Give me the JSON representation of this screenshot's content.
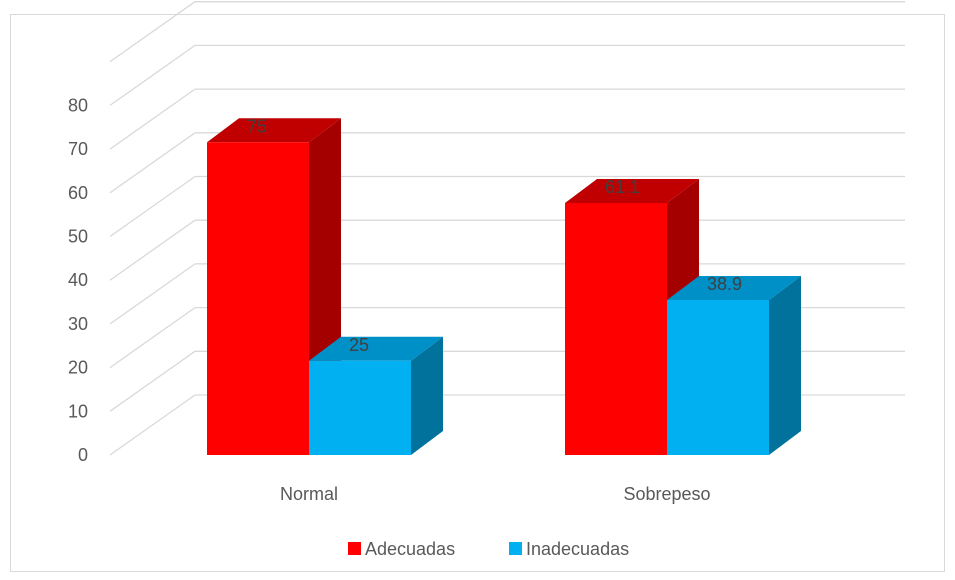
{
  "chart_data": {
    "type": "bar",
    "categories": [
      "Normal",
      "Sobrepeso"
    ],
    "series": [
      {
        "name": "Adecuadas",
        "values": [
          75,
          61.1
        ],
        "color": "#ff0000",
        "side_color": "#a50000",
        "top_color": "#c00000"
      },
      {
        "name": "Inadecuadas",
        "values": [
          25,
          38.9
        ],
        "color": "#00b0f0",
        "side_color": "#00729c",
        "top_color": "#0090c8"
      }
    ],
    "data_labels": [
      [
        "75",
        "61.1"
      ],
      [
        "25",
        "38.9"
      ]
    ],
    "y_ticks": [
      "0",
      "10",
      "20",
      "30",
      "40",
      "50",
      "60",
      "70",
      "80"
    ],
    "ylim": [
      0,
      80
    ],
    "grid": true,
    "legend_position": "bottom",
    "style": "3d-clustered-column",
    "title": "",
    "xlabel": "",
    "ylabel": ""
  }
}
